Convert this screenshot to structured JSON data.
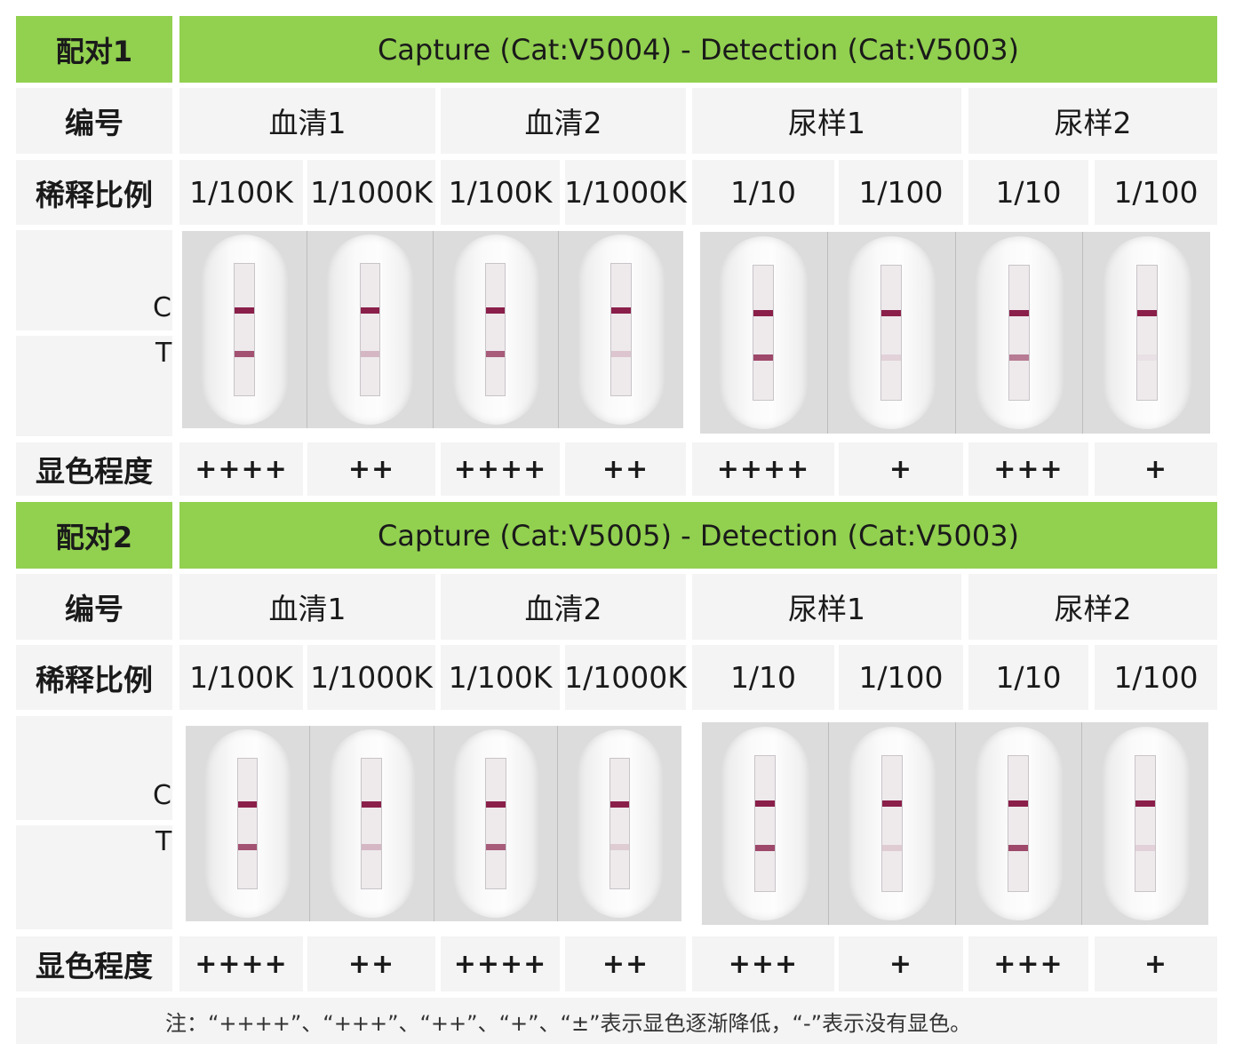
{
  "pairs": [
    {
      "pair_label": "配对1",
      "pair_title": "Capture (Cat:V5004) - Detection (Cat:V5003)",
      "id_label": "编号",
      "dilution_label": "稀释比例",
      "color_label": "显色程度",
      "samples": [
        "血清1",
        "血清2",
        "尿样1",
        "尿样2"
      ],
      "dilutions": [
        "1/100K",
        "1/1000K",
        "1/100K",
        "1/1000K",
        "1/10",
        "1/100",
        "1/10",
        "1/100"
      ],
      "c_label": "C",
      "t_label": "T",
      "strip_t_intensity": [
        0.75,
        0.25,
        0.7,
        0.18,
        0.8,
        0.12,
        0.55,
        0.05
      ],
      "intensity": [
        "++++",
        "++",
        "++++",
        "++",
        "++++",
        "+",
        "+++",
        "+"
      ]
    },
    {
      "pair_label": "配对2",
      "pair_title": "Capture (Cat:V5005) - Detection (Cat:V5003)",
      "id_label": "编号",
      "dilution_label": "稀释比例",
      "color_label": "显色程度",
      "samples": [
        "血清1",
        "血清2",
        "尿样1",
        "尿样2"
      ],
      "dilutions": [
        "1/100K",
        "1/1000K",
        "1/100K",
        "1/1000K",
        "1/10",
        "1/100",
        "1/10",
        "1/100"
      ],
      "c_label": "C",
      "t_label": "T",
      "strip_t_intensity": [
        0.75,
        0.25,
        0.7,
        0.15,
        0.8,
        0.15,
        0.8,
        0.12
      ],
      "intensity": [
        "++++",
        "++",
        "++++",
        "++",
        "+++",
        "+",
        "+++",
        "+"
      ]
    }
  ],
  "note": "注：“++++”、“+++”、“++”、“+”、“±”表示显色逐渐降低，“-”表示没有显色。",
  "colors": {
    "header_green": "#92d050",
    "band": "#8a1f4a",
    "cell": "#f4f4f4"
  }
}
